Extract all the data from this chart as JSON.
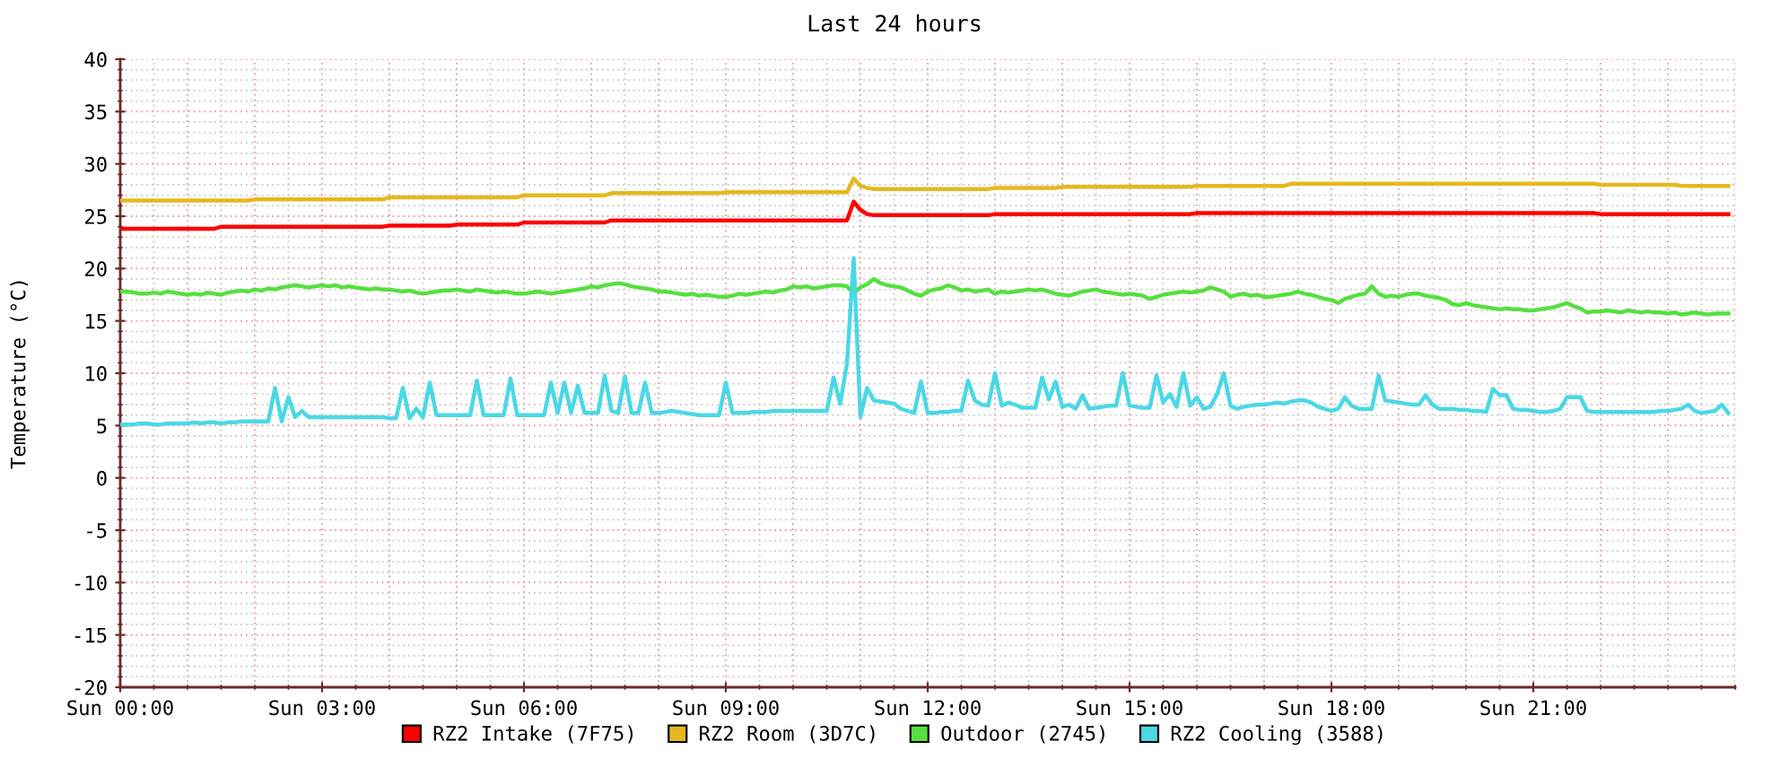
{
  "chart_data": {
    "type": "line",
    "title": "Last 24 hours",
    "ylabel": "Temperature (°C)",
    "categories": [
      "Sun 00:00",
      null,
      null,
      null,
      null,
      null,
      null,
      null,
      null,
      null,
      null,
      null,
      null,
      null,
      null,
      null,
      null,
      null,
      null,
      null,
      null,
      null,
      null,
      null,
      null,
      null,
      null,
      null,
      null,
      null,
      "Sun 03:00",
      null,
      null,
      null,
      null,
      null,
      null,
      null,
      null,
      null,
      null,
      null,
      null,
      null,
      null,
      null,
      null,
      null,
      null,
      null,
      null,
      null,
      null,
      null,
      null,
      null,
      null,
      null,
      null,
      null,
      "Sun 06:00",
      null,
      null,
      null,
      null,
      null,
      null,
      null,
      null,
      null,
      null,
      null,
      null,
      null,
      null,
      null,
      null,
      null,
      null,
      null,
      null,
      null,
      null,
      null,
      null,
      null,
      null,
      null,
      null,
      null,
      "Sun 09:00",
      null,
      null,
      null,
      null,
      null,
      null,
      null,
      null,
      null,
      null,
      null,
      null,
      null,
      null,
      null,
      null,
      null,
      null,
      null,
      null,
      null,
      null,
      null,
      null,
      null,
      null,
      null,
      null,
      null,
      "Sun 12:00",
      null,
      null,
      null,
      null,
      null,
      null,
      null,
      null,
      null,
      null,
      null,
      null,
      null,
      null,
      null,
      null,
      null,
      null,
      null,
      null,
      null,
      null,
      null,
      null,
      null,
      null,
      null,
      null,
      null,
      "Sun 15:00",
      null,
      null,
      null,
      null,
      null,
      null,
      null,
      null,
      null,
      null,
      null,
      null,
      null,
      null,
      null,
      null,
      null,
      null,
      null,
      null,
      null,
      null,
      null,
      null,
      null,
      null,
      null,
      null,
      null,
      "Sun 18:00",
      null,
      null,
      null,
      null,
      null,
      null,
      null,
      null,
      null,
      null,
      null,
      null,
      null,
      null,
      null,
      null,
      null,
      null,
      null,
      null,
      null,
      null,
      null,
      null,
      null,
      null,
      null,
      null,
      null,
      "Sun 21:00",
      null,
      null,
      null,
      null,
      null,
      null,
      null,
      null,
      null,
      null,
      null,
      null,
      null,
      null,
      null,
      null,
      null,
      null,
      null,
      null,
      null,
      null,
      null,
      null,
      null,
      null,
      null,
      null,
      null
    ],
    "ylim": [
      -20,
      40
    ],
    "yticks": [
      -20,
      -15,
      -10,
      -5,
      0,
      5,
      10,
      15,
      20,
      25,
      30,
      35,
      40
    ],
    "grid": true,
    "legend": "bottom",
    "marker": "none",
    "line_style": "solid",
    "series": [
      {
        "name": "RZ2 Intake (7F75)",
        "color": "#ff0000",
        "values": [
          23.8,
          23.8,
          23.8,
          23.8,
          23.8,
          23.8,
          23.8,
          23.8,
          23.8,
          23.8,
          23.8,
          23.8,
          23.8,
          23.8,
          23.8,
          24.0,
          24.0,
          24.0,
          24.0,
          24.0,
          24.0,
          24.0,
          24.0,
          24.0,
          24.0,
          24.0,
          24.0,
          24.0,
          24.0,
          24.0,
          24.0,
          24.0,
          24.0,
          24.0,
          24.0,
          24.0,
          24.0,
          24.0,
          24.0,
          24.0,
          24.1,
          24.1,
          24.1,
          24.1,
          24.1,
          24.1,
          24.1,
          24.1,
          24.1,
          24.1,
          24.2,
          24.2,
          24.2,
          24.2,
          24.2,
          24.2,
          24.2,
          24.2,
          24.2,
          24.2,
          24.4,
          24.4,
          24.4,
          24.4,
          24.4,
          24.4,
          24.4,
          24.4,
          24.4,
          24.4,
          24.4,
          24.4,
          24.4,
          24.6,
          24.6,
          24.6,
          24.6,
          24.6,
          24.6,
          24.6,
          24.6,
          24.6,
          24.6,
          24.6,
          24.6,
          24.6,
          24.6,
          24.6,
          24.6,
          24.6,
          24.6,
          24.6,
          24.6,
          24.6,
          24.6,
          24.6,
          24.6,
          24.6,
          24.6,
          24.6,
          24.6,
          24.6,
          24.6,
          24.6,
          24.6,
          24.6,
          24.6,
          24.6,
          24.6,
          26.4,
          25.6,
          25.2,
          25.1,
          25.1,
          25.1,
          25.1,
          25.1,
          25.1,
          25.1,
          25.1,
          25.1,
          25.1,
          25.1,
          25.1,
          25.1,
          25.1,
          25.1,
          25.1,
          25.1,
          25.1,
          25.2,
          25.2,
          25.2,
          25.2,
          25.2,
          25.2,
          25.2,
          25.2,
          25.2,
          25.2,
          25.2,
          25.2,
          25.2,
          25.2,
          25.2,
          25.2,
          25.2,
          25.2,
          25.2,
          25.2,
          25.2,
          25.2,
          25.2,
          25.2,
          25.2,
          25.2,
          25.2,
          25.2,
          25.2,
          25.2,
          25.3,
          25.3,
          25.3,
          25.3,
          25.3,
          25.3,
          25.3,
          25.3,
          25.3,
          25.3,
          25.3,
          25.3,
          25.3,
          25.3,
          25.3,
          25.3,
          25.3,
          25.3,
          25.3,
          25.3,
          25.3,
          25.3,
          25.3,
          25.3,
          25.3,
          25.3,
          25.3,
          25.3,
          25.3,
          25.3,
          25.3,
          25.3,
          25.3,
          25.3,
          25.3,
          25.3,
          25.3,
          25.3,
          25.3,
          25.3,
          25.3,
          25.3,
          25.3,
          25.3,
          25.3,
          25.3,
          25.3,
          25.3,
          25.3,
          25.3,
          25.3,
          25.3,
          25.3,
          25.3,
          25.3,
          25.3,
          25.3,
          25.3,
          25.3,
          25.3,
          25.2,
          25.2,
          25.2,
          25.2,
          25.2,
          25.2,
          25.2,
          25.2,
          25.2,
          25.2,
          25.2,
          25.2,
          25.2,
          25.2,
          25.2,
          25.2,
          25.2,
          25.2,
          25.2,
          25.2
        ]
      },
      {
        "name": "RZ2 Room (3D7C)",
        "color": "#e6b81e",
        "values": [
          26.5,
          26.5,
          26.5,
          26.5,
          26.5,
          26.5,
          26.5,
          26.5,
          26.5,
          26.5,
          26.5,
          26.5,
          26.5,
          26.5,
          26.5,
          26.5,
          26.5,
          26.5,
          26.5,
          26.5,
          26.6,
          26.6,
          26.6,
          26.6,
          26.6,
          26.6,
          26.6,
          26.6,
          26.6,
          26.6,
          26.6,
          26.6,
          26.6,
          26.6,
          26.6,
          26.6,
          26.6,
          26.6,
          26.6,
          26.6,
          26.8,
          26.8,
          26.8,
          26.8,
          26.8,
          26.8,
          26.8,
          26.8,
          26.8,
          26.8,
          26.8,
          26.8,
          26.8,
          26.8,
          26.8,
          26.8,
          26.8,
          26.8,
          26.8,
          26.8,
          27.0,
          27.0,
          27.0,
          27.0,
          27.0,
          27.0,
          27.0,
          27.0,
          27.0,
          27.0,
          27.0,
          27.0,
          27.0,
          27.2,
          27.2,
          27.2,
          27.2,
          27.2,
          27.2,
          27.2,
          27.2,
          27.2,
          27.2,
          27.2,
          27.2,
          27.2,
          27.2,
          27.2,
          27.2,
          27.2,
          27.3,
          27.3,
          27.3,
          27.3,
          27.3,
          27.3,
          27.3,
          27.3,
          27.3,
          27.3,
          27.3,
          27.3,
          27.3,
          27.3,
          27.3,
          27.3,
          27.3,
          27.3,
          27.3,
          28.6,
          27.9,
          27.7,
          27.6,
          27.6,
          27.6,
          27.6,
          27.6,
          27.6,
          27.6,
          27.6,
          27.6,
          27.6,
          27.6,
          27.6,
          27.6,
          27.6,
          27.6,
          27.6,
          27.6,
          27.6,
          27.7,
          27.7,
          27.7,
          27.7,
          27.7,
          27.7,
          27.7,
          27.7,
          27.7,
          27.7,
          27.8,
          27.8,
          27.8,
          27.8,
          27.8,
          27.8,
          27.8,
          27.8,
          27.8,
          27.8,
          27.8,
          27.8,
          27.8,
          27.8,
          27.8,
          27.8,
          27.8,
          27.8,
          27.8,
          27.8,
          27.9,
          27.9,
          27.9,
          27.9,
          27.9,
          27.9,
          27.9,
          27.9,
          27.9,
          27.9,
          27.9,
          27.9,
          27.9,
          27.9,
          28.1,
          28.1,
          28.1,
          28.1,
          28.1,
          28.1,
          28.1,
          28.1,
          28.1,
          28.1,
          28.1,
          28.1,
          28.1,
          28.1,
          28.1,
          28.1,
          28.1,
          28.1,
          28.1,
          28.1,
          28.1,
          28.1,
          28.1,
          28.1,
          28.1,
          28.1,
          28.1,
          28.1,
          28.1,
          28.1,
          28.1,
          28.1,
          28.1,
          28.1,
          28.1,
          28.1,
          28.1,
          28.1,
          28.1,
          28.1,
          28.1,
          28.1,
          28.1,
          28.1,
          28.1,
          28.1,
          28.0,
          28.0,
          28.0,
          28.0,
          28.0,
          28.0,
          28.0,
          28.0,
          28.0,
          28.0,
          28.0,
          28.0,
          27.9,
          27.9,
          27.9,
          27.9,
          27.9,
          27.9,
          27.9,
          27.9
        ]
      },
      {
        "name": "Outdoor (2745)",
        "color": "#55e03f",
        "values": [
          17.8,
          17.8,
          17.7,
          17.6,
          17.6,
          17.7,
          17.6,
          17.8,
          17.7,
          17.6,
          17.5,
          17.6,
          17.5,
          17.7,
          17.6,
          17.5,
          17.7,
          17.8,
          17.9,
          17.8,
          18.0,
          17.9,
          18.1,
          18.0,
          18.2,
          18.3,
          18.4,
          18.3,
          18.2,
          18.3,
          18.4,
          18.3,
          18.4,
          18.2,
          18.3,
          18.2,
          18.1,
          18.0,
          18.1,
          18.0,
          18.0,
          17.9,
          17.8,
          17.9,
          17.7,
          17.6,
          17.7,
          17.8,
          17.9,
          17.9,
          18.0,
          17.9,
          17.8,
          18.0,
          17.9,
          17.8,
          17.7,
          17.8,
          17.7,
          17.6,
          17.6,
          17.7,
          17.8,
          17.7,
          17.6,
          17.7,
          17.8,
          17.9,
          18.0,
          18.1,
          18.3,
          18.2,
          18.4,
          18.5,
          18.6,
          18.5,
          18.3,
          18.2,
          18.1,
          18.0,
          17.8,
          17.8,
          17.7,
          17.6,
          17.5,
          17.6,
          17.4,
          17.5,
          17.4,
          17.3,
          17.3,
          17.4,
          17.6,
          17.5,
          17.6,
          17.7,
          17.8,
          17.7,
          17.9,
          18.0,
          18.3,
          18.2,
          18.3,
          18.1,
          18.2,
          18.3,
          18.4,
          18.4,
          18.3,
          17.6,
          18.2,
          18.5,
          19.0,
          18.6,
          18.4,
          18.3,
          18.2,
          17.9,
          17.6,
          17.4,
          17.8,
          18.0,
          18.1,
          18.4,
          18.2,
          17.9,
          18.0,
          17.8,
          17.9,
          18.0,
          17.6,
          17.8,
          17.7,
          17.8,
          17.9,
          18.0,
          17.9,
          18.0,
          17.8,
          17.6,
          17.5,
          17.4,
          17.6,
          17.8,
          17.9,
          18.0,
          17.8,
          17.7,
          17.6,
          17.5,
          17.6,
          17.5,
          17.4,
          17.1,
          17.3,
          17.5,
          17.6,
          17.7,
          17.8,
          17.7,
          17.8,
          17.9,
          18.2,
          18.0,
          17.8,
          17.3,
          17.5,
          17.6,
          17.4,
          17.5,
          17.3,
          17.3,
          17.4,
          17.5,
          17.6,
          17.8,
          17.6,
          17.5,
          17.3,
          17.1,
          17.0,
          16.7,
          17.1,
          17.3,
          17.5,
          17.6,
          18.3,
          17.6,
          17.3,
          17.4,
          17.3,
          17.5,
          17.6,
          17.6,
          17.4,
          17.3,
          17.2,
          17.0,
          16.6,
          16.5,
          16.7,
          16.5,
          16.4,
          16.3,
          16.2,
          16.1,
          16.2,
          16.1,
          16.1,
          16.0,
          16.0,
          16.1,
          16.2,
          16.3,
          16.5,
          16.7,
          16.4,
          16.2,
          15.8,
          15.9,
          15.9,
          16.0,
          15.9,
          15.8,
          16.0,
          15.9,
          15.8,
          15.9,
          15.8,
          15.8,
          15.7,
          15.8,
          15.6,
          15.7,
          15.8,
          15.7,
          15.6,
          15.7,
          15.7,
          15.7
        ]
      },
      {
        "name": "RZ2 Cooling (3588)",
        "color": "#4ad8e6",
        "values": [
          5.1,
          5.1,
          5.1,
          5.2,
          5.2,
          5.1,
          5.1,
          5.2,
          5.2,
          5.2,
          5.2,
          5.3,
          5.2,
          5.3,
          5.3,
          5.2,
          5.3,
          5.3,
          5.4,
          5.4,
          5.4,
          5.4,
          5.4,
          8.6,
          5.4,
          7.7,
          5.8,
          6.4,
          5.8,
          5.8,
          5.8,
          5.8,
          5.8,
          5.8,
          5.8,
          5.8,
          5.8,
          5.8,
          5.8,
          5.8,
          5.7,
          5.7,
          8.6,
          5.7,
          6.6,
          5.8,
          9.1,
          6.0,
          6.0,
          6.0,
          6.0,
          6.0,
          6.0,
          9.3,
          6.0,
          6.0,
          6.0,
          6.0,
          9.5,
          6.0,
          6.0,
          6.0,
          6.0,
          6.0,
          9.1,
          6.2,
          9.1,
          6.2,
          8.8,
          6.2,
          6.2,
          6.2,
          9.8,
          6.4,
          6.2,
          9.7,
          6.2,
          6.2,
          9.1,
          6.2,
          6.2,
          6.3,
          6.4,
          6.3,
          6.2,
          6.1,
          6.0,
          6.0,
          6.0,
          6.0,
          9.1,
          6.2,
          6.2,
          6.2,
          6.3,
          6.3,
          6.3,
          6.4,
          6.4,
          6.4,
          6.4,
          6.4,
          6.4,
          6.4,
          6.4,
          6.4,
          9.6,
          7.1,
          10.9,
          21.0,
          5.8,
          8.6,
          7.4,
          7.3,
          7.2,
          7.1,
          6.6,
          6.4,
          6.2,
          9.2,
          6.2,
          6.2,
          6.3,
          6.3,
          6.4,
          6.4,
          9.3,
          7.4,
          7.0,
          6.9,
          10.0,
          6.9,
          7.2,
          7.0,
          6.7,
          6.7,
          6.7,
          9.6,
          7.5,
          9.2,
          6.8,
          7.0,
          6.6,
          7.9,
          6.6,
          6.7,
          6.8,
          6.9,
          6.9,
          10.0,
          6.9,
          6.8,
          6.7,
          6.7,
          9.8,
          7.2,
          8.0,
          6.8,
          10.0,
          6.9,
          7.7,
          6.6,
          6.8,
          8.0,
          10.0,
          6.9,
          6.6,
          6.8,
          6.9,
          7.0,
          7.0,
          7.1,
          7.2,
          7.1,
          7.3,
          7.4,
          7.4,
          7.2,
          6.8,
          6.6,
          6.4,
          6.6,
          7.7,
          6.9,
          6.6,
          6.6,
          6.6,
          9.8,
          7.4,
          7.3,
          7.2,
          7.1,
          7.0,
          7.0,
          7.9,
          7.0,
          6.6,
          6.6,
          6.6,
          6.5,
          6.5,
          6.4,
          6.4,
          6.3,
          8.5,
          7.9,
          7.9,
          6.6,
          6.5,
          6.5,
          6.4,
          6.3,
          6.3,
          6.4,
          6.6,
          7.7,
          7.7,
          7.7,
          6.4,
          6.3,
          6.3,
          6.3,
          6.3,
          6.3,
          6.3,
          6.3,
          6.3,
          6.3,
          6.3,
          6.4,
          6.4,
          6.5,
          6.6,
          7.0,
          6.4,
          6.2,
          6.3,
          6.4,
          7.0,
          6.2
        ]
      }
    ]
  }
}
